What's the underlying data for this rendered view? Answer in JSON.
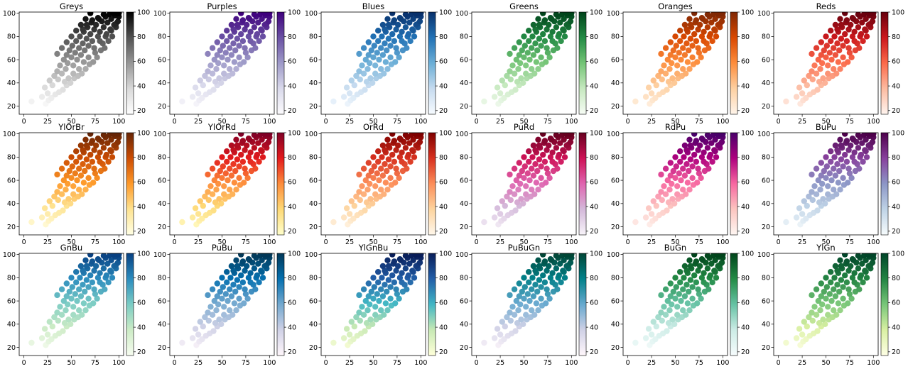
{
  "figure": {
    "layout": "3x6 grid of scatter plots, each colored by its y value with a colorbar",
    "x_ticks": [
      "0",
      "25",
      "50",
      "75",
      "100"
    ],
    "y_ticks": [
      "20",
      "40",
      "60",
      "80",
      "100"
    ],
    "colorbar_ticks": [
      "20",
      "40",
      "60",
      "80",
      "100"
    ]
  },
  "chart_data": [
    {
      "type": "scatter",
      "title": "Greys",
      "cmap": [
        "#ffffff",
        "#d9d9d9",
        "#969696",
        "#525252",
        "#000000"
      ],
      "xlim": [
        -5,
        105
      ],
      "ylim": [
        13,
        101
      ],
      "colorbar": [
        17,
        100
      ]
    },
    {
      "type": "scatter",
      "title": "Purples",
      "cmap": [
        "#fcfbfd",
        "#dadaeb",
        "#9e9ac8",
        "#6a51a3",
        "#3f007d"
      ],
      "xlim": [
        -5,
        105
      ],
      "ylim": [
        13,
        101
      ],
      "colorbar": [
        17,
        100
      ]
    },
    {
      "type": "scatter",
      "title": "Blues",
      "cmap": [
        "#f7fbff",
        "#c6dbef",
        "#6baed6",
        "#2171b5",
        "#08306b"
      ],
      "xlim": [
        -5,
        105
      ],
      "ylim": [
        13,
        101
      ],
      "colorbar": [
        17,
        100
      ]
    },
    {
      "type": "scatter",
      "title": "Greens",
      "cmap": [
        "#f7fcf5",
        "#c7e9c0",
        "#74c476",
        "#238b45",
        "#00441b"
      ],
      "xlim": [
        -5,
        105
      ],
      "ylim": [
        13,
        101
      ],
      "colorbar": [
        17,
        100
      ]
    },
    {
      "type": "scatter",
      "title": "Oranges",
      "cmap": [
        "#fff5eb",
        "#fdd0a2",
        "#fd8d3c",
        "#d94801",
        "#7f2704"
      ],
      "xlim": [
        -5,
        105
      ],
      "ylim": [
        13,
        101
      ],
      "colorbar": [
        17,
        100
      ]
    },
    {
      "type": "scatter",
      "title": "Reds",
      "cmap": [
        "#fff5f0",
        "#fcbba1",
        "#fb6a4a",
        "#cb181d",
        "#67000d"
      ],
      "xlim": [
        -5,
        105
      ],
      "ylim": [
        13,
        101
      ],
      "colorbar": [
        17,
        100
      ]
    },
    {
      "type": "scatter",
      "title": "YlOrBr",
      "cmap": [
        "#ffffe5",
        "#fee391",
        "#fe9929",
        "#cc4c02",
        "#662506"
      ],
      "xlim": [
        -5,
        105
      ],
      "ylim": [
        13,
        101
      ],
      "colorbar": [
        17,
        100
      ]
    },
    {
      "type": "scatter",
      "title": "YlOrRd",
      "cmap": [
        "#ffffcc",
        "#fed976",
        "#fd8d3c",
        "#e31a1c",
        "#800026"
      ],
      "xlim": [
        -5,
        105
      ],
      "ylim": [
        13,
        101
      ],
      "colorbar": [
        17,
        100
      ]
    },
    {
      "type": "scatter",
      "title": "OrRd",
      "cmap": [
        "#fff7ec",
        "#fdd49e",
        "#fc8d59",
        "#d7301f",
        "#7f0000"
      ],
      "xlim": [
        -5,
        105
      ],
      "ylim": [
        13,
        101
      ],
      "colorbar": [
        17,
        100
      ]
    },
    {
      "type": "scatter",
      "title": "PuRd",
      "cmap": [
        "#f7f4f9",
        "#d4b9da",
        "#df65b0",
        "#ce1256",
        "#67001f"
      ],
      "xlim": [
        -5,
        105
      ],
      "ylim": [
        13,
        101
      ],
      "colorbar": [
        17,
        100
      ]
    },
    {
      "type": "scatter",
      "title": "RdPu",
      "cmap": [
        "#fff7f3",
        "#fcc5c0",
        "#f768a1",
        "#ae017e",
        "#49006a"
      ],
      "xlim": [
        -5,
        105
      ],
      "ylim": [
        13,
        101
      ],
      "colorbar": [
        17,
        100
      ]
    },
    {
      "type": "scatter",
      "title": "BuPu",
      "cmap": [
        "#f7fcfd",
        "#bfd3e6",
        "#8c96c6",
        "#88419d",
        "#4d004b"
      ],
      "xlim": [
        -5,
        105
      ],
      "ylim": [
        13,
        101
      ],
      "colorbar": [
        17,
        100
      ]
    },
    {
      "type": "scatter",
      "title": "GnBu",
      "cmap": [
        "#f7fcf0",
        "#ccebc5",
        "#7bccc4",
        "#2b8cbe",
        "#084081"
      ],
      "xlim": [
        -5,
        105
      ],
      "ylim": [
        13,
        101
      ],
      "colorbar": [
        17,
        100
      ]
    },
    {
      "type": "scatter",
      "title": "PuBu",
      "cmap": [
        "#fff7fb",
        "#d0d1e6",
        "#74a9cf",
        "#0570b0",
        "#023858"
      ],
      "xlim": [
        -5,
        105
      ],
      "ylim": [
        13,
        101
      ],
      "colorbar": [
        17,
        100
      ]
    },
    {
      "type": "scatter",
      "title": "YlGnBu",
      "cmap": [
        "#ffffd9",
        "#c7e9b4",
        "#41b6c4",
        "#225ea8",
        "#081d58"
      ],
      "xlim": [
        -5,
        105
      ],
      "ylim": [
        13,
        101
      ],
      "colorbar": [
        17,
        100
      ]
    },
    {
      "type": "scatter",
      "title": "PuBuGn",
      "cmap": [
        "#fff7fb",
        "#d0d1e6",
        "#67a9cf",
        "#02818a",
        "#014636"
      ],
      "xlim": [
        -5,
        105
      ],
      "ylim": [
        13,
        101
      ],
      "colorbar": [
        17,
        100
      ]
    },
    {
      "type": "scatter",
      "title": "BuGn",
      "cmap": [
        "#f7fcfd",
        "#ccece6",
        "#66c2a4",
        "#238b45",
        "#00441b"
      ],
      "xlim": [
        -5,
        105
      ],
      "ylim": [
        13,
        101
      ],
      "colorbar": [
        17,
        100
      ]
    },
    {
      "type": "scatter",
      "title": "YlGn",
      "cmap": [
        "#ffffe5",
        "#d9f0a3",
        "#78c679",
        "#238443",
        "#004529"
      ],
      "xlim": [
        -5,
        105
      ],
      "ylim": [
        13,
        101
      ],
      "colorbar": [
        17,
        100
      ]
    }
  ],
  "scatter_points": [
    [
      8,
      24
    ],
    [
      19,
      28
    ],
    [
      22,
      36
    ],
    [
      25,
      31
    ],
    [
      27,
      42
    ],
    [
      30,
      38
    ],
    [
      32,
      46
    ],
    [
      35,
      50
    ],
    [
      36,
      43
    ],
    [
      38,
      55
    ],
    [
      40,
      48
    ],
    [
      42,
      60
    ],
    [
      44,
      52
    ],
    [
      45,
      64
    ],
    [
      46,
      57
    ],
    [
      48,
      68
    ],
    [
      50,
      62
    ],
    [
      51,
      72
    ],
    [
      52,
      55
    ],
    [
      54,
      66
    ],
    [
      55,
      76
    ],
    [
      56,
      60
    ],
    [
      58,
      70
    ],
    [
      59,
      80
    ],
    [
      60,
      64
    ],
    [
      62,
      74
    ],
    [
      63,
      84
    ],
    [
      64,
      68
    ],
    [
      66,
      78
    ],
    [
      67,
      88
    ],
    [
      68,
      72
    ],
    [
      70,
      82
    ],
    [
      71,
      92
    ],
    [
      72,
      76
    ],
    [
      74,
      86
    ],
    [
      75,
      66
    ],
    [
      76,
      90
    ],
    [
      78,
      80
    ],
    [
      79,
      95
    ],
    [
      80,
      84
    ],
    [
      82,
      93
    ],
    [
      83,
      74
    ],
    [
      84,
      88
    ],
    [
      86,
      97
    ],
    [
      87,
      82
    ],
    [
      88,
      92
    ],
    [
      90,
      99
    ],
    [
      91,
      86
    ],
    [
      92,
      95
    ],
    [
      94,
      100
    ],
    [
      95,
      90
    ],
    [
      96,
      98
    ],
    [
      98,
      100
    ],
    [
      99,
      93
    ],
    [
      100,
      97
    ],
    [
      97,
      88
    ],
    [
      93,
      80
    ],
    [
      89,
      76
    ],
    [
      85,
      70
    ],
    [
      81,
      68
    ],
    [
      77,
      62
    ],
    [
      73,
      58
    ],
    [
      69,
      56
    ],
    [
      65,
      52
    ],
    [
      61,
      48
    ],
    [
      57,
      46
    ],
    [
      53,
      44
    ],
    [
      49,
      40
    ],
    [
      45,
      38
    ],
    [
      41,
      34
    ],
    [
      37,
      32
    ],
    [
      33,
      30
    ],
    [
      29,
      27
    ],
    [
      26,
      25
    ],
    [
      23,
      22
    ],
    [
      60,
      90
    ],
    [
      55,
      85
    ],
    [
      50,
      80
    ],
    [
      65,
      95
    ],
    [
      70,
      100
    ],
    [
      45,
      75
    ],
    [
      40,
      70
    ],
    [
      35,
      65
    ],
    [
      52,
      48
    ],
    [
      47,
      44
    ],
    [
      43,
      41
    ],
    [
      58,
      52
    ],
    [
      63,
      58
    ],
    [
      68,
      62
    ],
    [
      74,
      70
    ],
    [
      80,
      76
    ],
    [
      86,
      80
    ],
    [
      92,
      85
    ],
    [
      97,
      91
    ],
    [
      100,
      100
    ],
    [
      84,
      99
    ],
    [
      78,
      96
    ],
    [
      72,
      94
    ],
    [
      66,
      90
    ],
    [
      62,
      86
    ]
  ]
}
